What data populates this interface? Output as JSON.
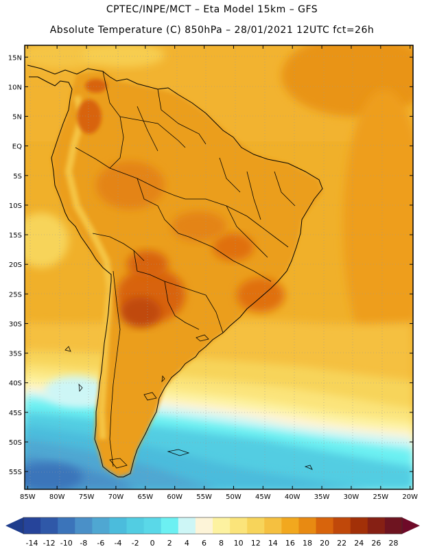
{
  "title": {
    "line1": "CPTEC/INPE/MCT –  Eta Model 15km – GFS",
    "line2": "Absolute Temperature (C) 850hPa – 28/01/2021 12UTC fct=26h"
  },
  "map": {
    "lon_range": [
      -85.5,
      -19.5
    ],
    "lat_range": [
      -58,
      17
    ],
    "lon_ticks": [
      "85W",
      "80W",
      "75W",
      "70W",
      "65W",
      "60W",
      "55W",
      "50W",
      "45W",
      "40W",
      "35W",
      "30W",
      "25W",
      "20W"
    ],
    "lon_values": [
      -85,
      -80,
      -75,
      -70,
      -65,
      -60,
      -55,
      -50,
      -45,
      -40,
      -35,
      -30,
      -25,
      -20
    ],
    "lat_ticks": [
      "15N",
      "10N",
      "5N",
      "EQ",
      "5S",
      "10S",
      "15S",
      "20S",
      "25S",
      "30S",
      "35S",
      "40S",
      "45S",
      "50S",
      "55S"
    ],
    "lat_values": [
      15,
      10,
      5,
      0,
      -5,
      -10,
      -15,
      -20,
      -25,
      -30,
      -35,
      -40,
      -45,
      -50,
      -55
    ]
  },
  "colorbar": {
    "labels": [
      "-14",
      "-12",
      "-10",
      "-8",
      "-6",
      "-4",
      "-2",
      "0",
      "2",
      "4",
      "6",
      "8",
      "10",
      "12",
      "14",
      "16",
      "18",
      "20",
      "22",
      "24",
      "26",
      "28"
    ],
    "low_color": "#1e3c8c",
    "high_color": "#6e0a28",
    "colors": [
      "#26449a",
      "#2f58a8",
      "#3b74ba",
      "#4a90c8",
      "#4fa7d2",
      "#4bbcdc",
      "#52cde2",
      "#5ad8e8",
      "#6cf0f2",
      "#cdf6f6",
      "#fdf4d8",
      "#fdf2a0",
      "#fbe47a",
      "#f7d45a",
      "#f5c040",
      "#f2a81e",
      "#e88a12",
      "#d8640c",
      "#c0480a",
      "#a23008",
      "#862014",
      "#6e1420"
    ]
  },
  "colors": {
    "land_fill": "#eb9e1e",
    "warm_core": "#c85412"
  }
}
